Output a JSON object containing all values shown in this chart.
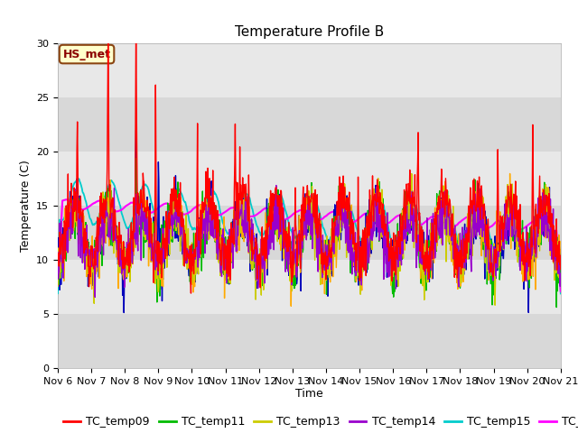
{
  "title": "Temperature Profile B",
  "xlabel": "Time",
  "ylabel": "Temperature (C)",
  "ylim": [
    0,
    30
  ],
  "xlim": [
    0,
    360
  ],
  "x_tick_labels": [
    "Nov 6",
    "Nov 7",
    "Nov 8",
    "Nov 9",
    "Nov 10",
    "Nov 11",
    "Nov 12",
    "Nov 13",
    "Nov 14",
    "Nov 15",
    "Nov 16",
    "Nov 17",
    "Nov 18",
    "Nov 19",
    "Nov 20",
    "Nov 21"
  ],
  "x_tick_positions": [
    0,
    24,
    48,
    72,
    96,
    120,
    144,
    168,
    192,
    216,
    240,
    264,
    288,
    312,
    336,
    360
  ],
  "annotation_text": "HS_met",
  "series_colors": {
    "TC_temp09": "#ff0000",
    "TC_temp10": "#0000bb",
    "TC_temp11": "#00bb00",
    "TC_temp12": "#ffaa00",
    "TC_temp13": "#cccc00",
    "TC_temp14": "#9900cc",
    "TC_temp15": "#00cccc",
    "TC_temp16": "#ff00ff"
  },
  "band_colors": [
    "#d8d8d8",
    "#e8e8e8"
  ],
  "figure_background": "#ffffff",
  "linewidth": 1.0,
  "title_fontsize": 11,
  "legend_fontsize": 9,
  "yticks": [
    0,
    5,
    10,
    15,
    20,
    25,
    30
  ],
  "band_boundaries": [
    0,
    5,
    10,
    15,
    20,
    25,
    30
  ]
}
